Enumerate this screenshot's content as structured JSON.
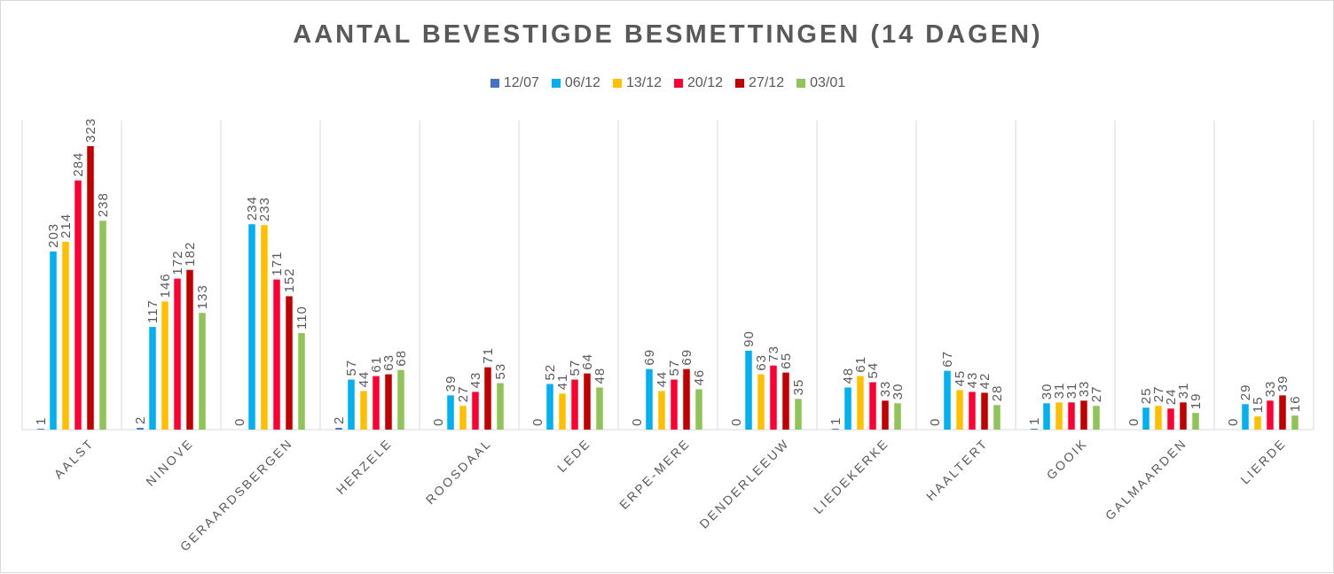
{
  "chart_data": {
    "type": "bar",
    "title": "AANTAL BEVESTIGDE BESMETTINGEN (14 DAGEN)",
    "xlabel": "",
    "ylabel": "",
    "ylim": [
      0,
      330
    ],
    "grid": "vertical category separators",
    "legend_position": "top",
    "categories": [
      "AALST",
      "NINOVE",
      "GERAARDSBERGEN",
      "HERZELE",
      "ROOSDAAL",
      "LEDE",
      "ERPE-MERE",
      "DENDERLEEUW",
      "LIEDEKERKE",
      "HAALTERT",
      "GOOIK",
      "GALMAARDEN",
      "LIERDE"
    ],
    "series": [
      {
        "name": "12/07",
        "color": "#4472c4",
        "values": [
          1,
          2,
          0,
          2,
          0,
          0,
          0,
          0,
          1,
          0,
          1,
          0,
          0
        ]
      },
      {
        "name": "06/12",
        "color": "#00b0f0",
        "values": [
          203,
          117,
          234,
          57,
          39,
          52,
          69,
          90,
          48,
          67,
          30,
          25,
          29
        ]
      },
      {
        "name": "13/12",
        "color": "#ffc000",
        "values": [
          214,
          146,
          233,
          44,
          27,
          41,
          44,
          63,
          61,
          45,
          31,
          27,
          15
        ]
      },
      {
        "name": "20/12",
        "color": "#ff0033",
        "values": [
          284,
          172,
          171,
          61,
          43,
          57,
          57,
          73,
          54,
          43,
          31,
          24,
          33
        ]
      },
      {
        "name": "27/12",
        "color": "#c00000",
        "values": [
          323,
          182,
          152,
          63,
          71,
          64,
          69,
          65,
          33,
          42,
          33,
          31,
          39
        ]
      },
      {
        "name": "03/01",
        "color": "#8fc45a",
        "values": [
          238,
          133,
          110,
          68,
          53,
          48,
          46,
          35,
          30,
          28,
          27,
          19,
          16
        ]
      }
    ]
  }
}
